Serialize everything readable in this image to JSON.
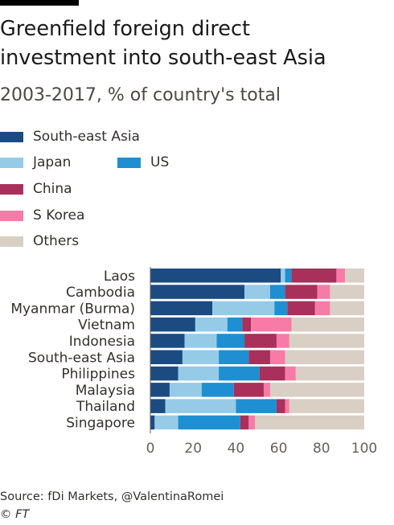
{
  "header": {
    "title": "Greenfield foreign direct\ninvestment into south-east Asia",
    "subtitle": "2003-2017, % of country's total"
  },
  "footer": {
    "source": "Source: fDi Markets, @ValentinaRomei",
    "copyright": "© FT"
  },
  "chart_data": {
    "type": "bar",
    "orientation": "horizontal",
    "stacked": true,
    "categories": [
      "Laos",
      "Cambodia",
      "Myanmar (Burma)",
      "Vietnam",
      "Indonesia",
      "South-east Asia",
      "Philippines",
      "Malaysia",
      "Thailand",
      "Singapore"
    ],
    "series": [
      {
        "name": "South-east Asia",
        "color": "#1c4b82",
        "values": [
          61,
          44,
          29,
          21,
          16,
          15,
          13,
          9,
          7,
          2
        ]
      },
      {
        "name": "Japan",
        "color": "#96cbe8",
        "values": [
          2,
          12,
          29,
          15,
          15,
          17,
          19,
          15,
          33,
          11
        ]
      },
      {
        "name": "US",
        "color": "#1e8fd1",
        "values": [
          3,
          7,
          6,
          7,
          13,
          14,
          19,
          15,
          19,
          29
        ]
      },
      {
        "name": "China",
        "color": "#a9305a",
        "values": [
          21,
          15,
          13,
          4,
          15,
          10,
          12,
          14,
          4,
          4
        ]
      },
      {
        "name": "S Korea",
        "color": "#f67ca7",
        "values": [
          4,
          6,
          7,
          19,
          6,
          7,
          5,
          3,
          2,
          3
        ]
      },
      {
        "name": "Others",
        "color": "#dacfc4",
        "values": [
          9,
          16,
          16,
          34,
          35,
          37,
          32,
          44,
          35,
          51
        ]
      }
    ],
    "xlim": [
      0,
      100
    ],
    "xticks": [
      "0",
      "20",
      "40",
      "60",
      "80",
      "100"
    ],
    "grid": false,
    "legend_position": "top"
  }
}
